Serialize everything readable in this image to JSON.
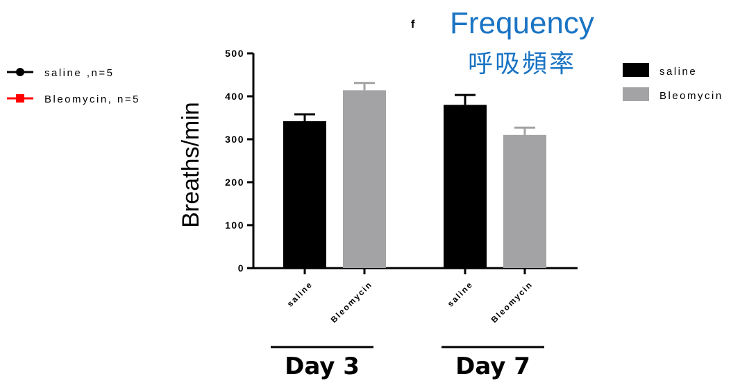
{
  "panel_letter": "f",
  "title": "Frequency",
  "subtitle": "呼吸頻率",
  "colors": {
    "title": "#1a74c4",
    "saline": "#000000",
    "bleomycin": "#a3a3a5",
    "legend_bleomycin_line": "#ff0000"
  },
  "legend_left": [
    {
      "label": "saline ,n=5",
      "color": "#000000",
      "marker": "circle"
    },
    {
      "label": "Bleomycin, n=5",
      "color": "#ff0000",
      "marker": "square"
    }
  ],
  "legend_right": [
    {
      "label": "saline",
      "color": "#000000"
    },
    {
      "label": "Bleomycin",
      "color": "#a3a3a5"
    }
  ],
  "chart_data": {
    "type": "bar",
    "ylabel": "Breaths/min",
    "xlabel": "",
    "ylim": [
      0,
      500
    ],
    "yticks": [
      0,
      100,
      200,
      300,
      400,
      500
    ],
    "groups": [
      {
        "label": "Day 3",
        "bars": [
          {
            "category": "saline",
            "value": 342,
            "error": 16,
            "color": "#000000"
          },
          {
            "category": "Bleomycin",
            "value": 414,
            "error": 17,
            "color": "#a3a3a5"
          }
        ]
      },
      {
        "label": "Day 7",
        "bars": [
          {
            "category": "saline",
            "value": 380,
            "error": 23,
            "color": "#000000"
          },
          {
            "category": "Bleomycin",
            "value": 310,
            "error": 17,
            "color": "#a3a3a5"
          }
        ]
      }
    ],
    "legend": "top-right",
    "grid": false
  }
}
